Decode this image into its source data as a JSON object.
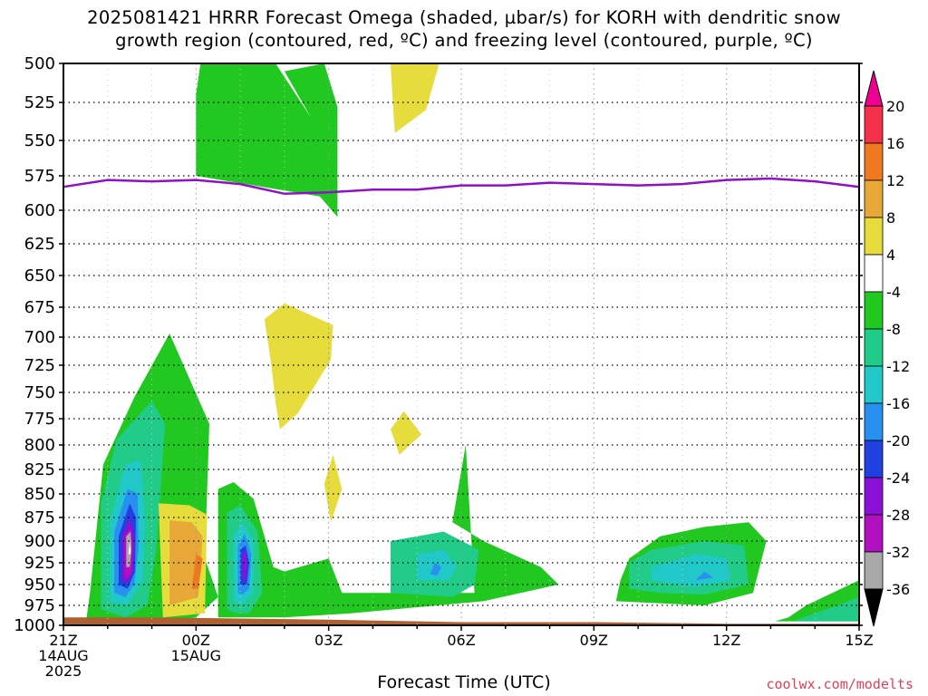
{
  "title": {
    "line1": "2025081421 HRRR Forecast Omega (shaded, µbar/s) for KORH with dendritic snow",
    "line2": "growth region (contoured, red, ºC) and freezing level (contoured, purple, ºC)"
  },
  "credit": "coolwx.com/modelts",
  "chart_data": {
    "type": "contour",
    "xlabel": "Forecast Time (UTC)",
    "ylabel": "",
    "x_range_hours": [
      0,
      18
    ],
    "y_range_mb": [
      1000,
      500
    ],
    "y_ticks": [
      500,
      525,
      550,
      575,
      600,
      625,
      650,
      675,
      700,
      725,
      750,
      775,
      800,
      825,
      850,
      875,
      900,
      925,
      950,
      975,
      1000
    ],
    "x_ticks": [
      {
        "hour": 0,
        "lines": [
          "21Z",
          "14AUG",
          "2025"
        ]
      },
      {
        "hour": 3,
        "lines": [
          "00Z",
          "15AUG"
        ]
      },
      {
        "hour": 6,
        "lines": [
          "03Z"
        ]
      },
      {
        "hour": 9,
        "lines": [
          "06Z"
        ]
      },
      {
        "hour": 12,
        "lines": [
          "09Z"
        ]
      },
      {
        "hour": 15,
        "lines": [
          "12Z"
        ]
      },
      {
        "hour": 18,
        "lines": [
          "15Z"
        ]
      }
    ],
    "grid": true,
    "colorbar": {
      "labels": [
        "20",
        "16",
        "12",
        "8",
        "4",
        "-4",
        "-8",
        "-12",
        "-16",
        "-20",
        "-24",
        "-28",
        "-32",
        "-36"
      ],
      "bands": [
        {
          "range": [
            16,
            20
          ],
          "color": "#f5304a"
        },
        {
          "range": [
            12,
            16
          ],
          "color": "#f07820"
        },
        {
          "range": [
            8,
            12
          ],
          "color": "#e8a838"
        },
        {
          "range": [
            4,
            8
          ],
          "color": "#e6dc3c"
        },
        {
          "range": [
            -4,
            4
          ],
          "color": "#ffffff"
        },
        {
          "range": [
            -8,
            -4
          ],
          "color": "#20c820"
        },
        {
          "range": [
            -12,
            -8
          ],
          "color": "#20cc88"
        },
        {
          "range": [
            -16,
            -12
          ],
          "color": "#20c8c8"
        },
        {
          "range": [
            -20,
            -16
          ],
          "color": "#2890f0"
        },
        {
          "range": [
            -24,
            -20
          ],
          "color": "#2040e0"
        },
        {
          "range": [
            -28,
            -24
          ],
          "color": "#8a10d8"
        },
        {
          "range": [
            -32,
            -28
          ],
          "color": "#b010c0"
        },
        {
          "range": [
            -36,
            -32
          ],
          "color": "#a8a8a8"
        }
      ],
      "top_arrow_color": "#f00090",
      "bottom_arrow_color": "#000000"
    },
    "freezing_level": {
      "color": "#9010c8",
      "points": [
        [
          0,
          583
        ],
        [
          1,
          578
        ],
        [
          2,
          579
        ],
        [
          3,
          578
        ],
        [
          4,
          581
        ],
        [
          5,
          588
        ],
        [
          6,
          587
        ],
        [
          7,
          585
        ],
        [
          8,
          585
        ],
        [
          9,
          582
        ],
        [
          10,
          582
        ],
        [
          11,
          580
        ],
        [
          12,
          581
        ],
        [
          13,
          582
        ],
        [
          14,
          581
        ],
        [
          15,
          578
        ],
        [
          16,
          577
        ],
        [
          17,
          579
        ],
        [
          18,
          583
        ]
      ]
    },
    "omega_regions": [
      {
        "value": -6,
        "color": "#20c820",
        "points": [
          [
            0.5,
            1000
          ],
          [
            0.6,
            960
          ],
          [
            0.9,
            820
          ],
          [
            1.6,
            755
          ],
          [
            2.4,
            697
          ],
          [
            3.3,
            780
          ],
          [
            3.2,
            920
          ],
          [
            3.5,
            965
          ],
          [
            3.0,
            990
          ],
          [
            1.8,
            1000
          ]
        ]
      },
      {
        "value": -10,
        "color": "#20cc88",
        "points": [
          [
            0.85,
            980
          ],
          [
            0.85,
            860
          ],
          [
            1.2,
            795
          ],
          [
            2.0,
            758
          ],
          [
            2.3,
            780
          ],
          [
            2.1,
            910
          ],
          [
            1.9,
            975
          ],
          [
            1.4,
            990
          ]
        ]
      },
      {
        "value": -14,
        "color": "#20c8c8",
        "points": [
          [
            1.05,
            970
          ],
          [
            1.05,
            880
          ],
          [
            1.4,
            820
          ],
          [
            1.75,
            815
          ],
          [
            1.85,
            880
          ],
          [
            1.8,
            945
          ],
          [
            1.45,
            975
          ]
        ]
      },
      {
        "value": -18,
        "color": "#2890f0",
        "points": [
          [
            1.15,
            960
          ],
          [
            1.15,
            890
          ],
          [
            1.45,
            845
          ],
          [
            1.68,
            850
          ],
          [
            1.7,
            910
          ],
          [
            1.6,
            950
          ],
          [
            1.4,
            965
          ]
        ]
      },
      {
        "value": -22,
        "color": "#2040e0",
        "points": [
          [
            1.25,
            950
          ],
          [
            1.25,
            895
          ],
          [
            1.5,
            860
          ],
          [
            1.64,
            875
          ],
          [
            1.62,
            935
          ],
          [
            1.45,
            955
          ]
        ]
      },
      {
        "value": -26,
        "color": "#8a10d8",
        "points": [
          [
            1.33,
            945
          ],
          [
            1.33,
            895
          ],
          [
            1.5,
            875
          ],
          [
            1.6,
            895
          ],
          [
            1.58,
            935
          ],
          [
            1.45,
            948
          ]
        ]
      },
      {
        "value": -30,
        "color": "#b010c0",
        "points": [
          [
            1.38,
            940
          ],
          [
            1.38,
            895
          ],
          [
            1.52,
            885
          ],
          [
            1.57,
            905
          ],
          [
            1.55,
            935
          ],
          [
            1.45,
            943
          ]
        ]
      },
      {
        "value": -34,
        "color": "#a8a8a8",
        "points": [
          [
            1.42,
            930
          ],
          [
            1.42,
            895
          ],
          [
            1.52,
            890
          ],
          [
            1.54,
            910
          ],
          [
            1.5,
            930
          ]
        ]
      },
      {
        "value": -36,
        "color": "#ffffff",
        "points": [
          [
            1.47,
            915
          ],
          [
            1.5,
            900
          ],
          [
            1.52,
            915
          ]
        ]
      },
      {
        "value": 6,
        "color": "#e6dc3c",
        "points": [
          [
            2.25,
            990
          ],
          [
            2.15,
            860
          ],
          [
            2.85,
            862
          ],
          [
            3.25,
            872
          ],
          [
            3.2,
            985
          ]
        ]
      },
      {
        "value": 10,
        "color": "#e8a838",
        "points": [
          [
            2.4,
            975
          ],
          [
            2.4,
            878
          ],
          [
            2.9,
            880
          ],
          [
            3.15,
            895
          ],
          [
            3.05,
            965
          ]
        ]
      },
      {
        "value": 14,
        "color": "#f07820",
        "points": [
          [
            2.9,
            955
          ],
          [
            3.0,
            915
          ],
          [
            3.15,
            920
          ],
          [
            3.05,
            955
          ]
        ]
      },
      {
        "value": -6,
        "color": "#20c820",
        "points": [
          [
            3.5,
            990
          ],
          [
            3.5,
            845
          ],
          [
            3.85,
            838
          ],
          [
            4.3,
            855
          ],
          [
            4.75,
            930
          ],
          [
            5.0,
            935
          ],
          [
            6.0,
            920
          ],
          [
            6.3,
            960
          ],
          [
            7.5,
            960
          ],
          [
            9.3,
            960
          ],
          [
            9.1,
            800
          ],
          [
            8.8,
            880
          ],
          [
            9.5,
            900
          ],
          [
            10.8,
            930
          ],
          [
            11.2,
            950
          ],
          [
            9.5,
            970
          ],
          [
            6.5,
            985
          ],
          [
            5.0,
            990
          ]
        ]
      },
      {
        "value": -10,
        "color": "#20cc88",
        "points": [
          [
            3.7,
            980
          ],
          [
            3.7,
            870
          ],
          [
            4.0,
            862
          ],
          [
            4.4,
            890
          ],
          [
            4.5,
            960
          ],
          [
            4.2,
            985
          ],
          [
            3.9,
            985
          ]
        ]
      },
      {
        "value": -14,
        "color": "#20c8c8",
        "points": [
          [
            3.85,
            970
          ],
          [
            3.85,
            895
          ],
          [
            4.05,
            880
          ],
          [
            4.3,
            900
          ],
          [
            4.3,
            960
          ],
          [
            4.05,
            975
          ]
        ]
      },
      {
        "value": -18,
        "color": "#2890f0",
        "points": [
          [
            3.95,
            960
          ],
          [
            3.95,
            905
          ],
          [
            4.1,
            892
          ],
          [
            4.25,
            915
          ],
          [
            4.2,
            955
          ],
          [
            4.05,
            962
          ]
        ]
      },
      {
        "value": -22,
        "color": "#2040e0",
        "points": [
          [
            4.0,
            950
          ],
          [
            4.0,
            910
          ],
          [
            4.12,
            905
          ],
          [
            4.2,
            925
          ],
          [
            4.15,
            950
          ]
        ]
      },
      {
        "value": -26,
        "color": "#8a10d8",
        "points": [
          [
            4.05,
            945
          ],
          [
            4.05,
            915
          ],
          [
            4.12,
            912
          ],
          [
            4.16,
            930
          ],
          [
            4.12,
            945
          ]
        ]
      },
      {
        "value": 6,
        "color": "#e6dc3c",
        "points": [
          [
            4.7,
            724
          ],
          [
            4.55,
            685
          ],
          [
            5.0,
            672
          ],
          [
            6.1,
            690
          ],
          [
            6.05,
            720
          ],
          [
            5.3,
            770
          ],
          [
            4.9,
            785
          ],
          [
            4.8,
            760
          ]
        ]
      },
      {
        "value": 6,
        "color": "#e6dc3c",
        "points": [
          [
            5.9,
            840
          ],
          [
            6.1,
            810
          ],
          [
            6.3,
            845
          ],
          [
            6.05,
            880
          ]
        ]
      },
      {
        "value": 6,
        "color": "#e6dc3c",
        "points": [
          [
            7.4,
            785
          ],
          [
            7.7,
            768
          ],
          [
            8.1,
            790
          ],
          [
            7.6,
            810
          ]
        ]
      },
      {
        "value": 6,
        "color": "#e6dc3c",
        "points": [
          [
            7.45,
            525
          ],
          [
            7.4,
            500
          ],
          [
            8.5,
            500
          ],
          [
            8.2,
            530
          ],
          [
            7.5,
            545
          ]
        ]
      },
      {
        "value": -6,
        "color": "#20c820",
        "points": [
          [
            3.0,
            520
          ],
          [
            3.1,
            500
          ],
          [
            4.8,
            500
          ],
          [
            5.6,
            535
          ],
          [
            5.0,
            505
          ],
          [
            5.9,
            500
          ],
          [
            6.2,
            528
          ],
          [
            6.2,
            605
          ],
          [
            5.8,
            590
          ],
          [
            3.0,
            575
          ]
        ]
      },
      {
        "value": -10,
        "color": "#20cc88",
        "points": [
          [
            7.4,
            960
          ],
          [
            7.4,
            900
          ],
          [
            8.6,
            890
          ],
          [
            9.4,
            910
          ],
          [
            9.3,
            950
          ],
          [
            8.8,
            965
          ]
        ]
      },
      {
        "value": -14,
        "color": "#20c8c8",
        "points": [
          [
            8.0,
            945
          ],
          [
            8.0,
            915
          ],
          [
            8.6,
            910
          ],
          [
            8.9,
            930
          ],
          [
            8.7,
            945
          ]
        ]
      },
      {
        "value": -18,
        "color": "#2890f0",
        "points": [
          [
            8.3,
            938
          ],
          [
            8.4,
            925
          ],
          [
            8.55,
            930
          ],
          [
            8.45,
            940
          ]
        ]
      },
      {
        "value": -6,
        "color": "#20c820",
        "points": [
          [
            12.5,
            970
          ],
          [
            12.6,
            945
          ],
          [
            12.8,
            920
          ],
          [
            13.5,
            895
          ],
          [
            14.5,
            885
          ],
          [
            15.5,
            880
          ],
          [
            15.9,
            900
          ],
          [
            15.6,
            960
          ],
          [
            14.5,
            975
          ]
        ]
      },
      {
        "value": -10,
        "color": "#20cc88",
        "points": [
          [
            12.8,
            955
          ],
          [
            12.8,
            925
          ],
          [
            13.3,
            910
          ],
          [
            14.5,
            900
          ],
          [
            15.4,
            905
          ],
          [
            15.5,
            950
          ],
          [
            14.5,
            962
          ],
          [
            13.5,
            960
          ]
        ]
      },
      {
        "value": -14,
        "color": "#20c8c8",
        "points": [
          [
            13.3,
            945
          ],
          [
            13.3,
            930
          ],
          [
            14.3,
            915
          ],
          [
            15.0,
            920
          ],
          [
            15.1,
            945
          ],
          [
            14.3,
            953
          ]
        ]
      },
      {
        "value": -18,
        "color": "#2890f0",
        "points": [
          [
            14.3,
            945
          ],
          [
            14.5,
            935
          ],
          [
            14.7,
            942
          ]
        ]
      },
      {
        "value": -6,
        "color": "#20c820",
        "points": [
          [
            16.1,
            995
          ],
          [
            16.4,
            990
          ],
          [
            16.8,
            975
          ],
          [
            18,
            945
          ],
          [
            18,
            995
          ]
        ]
      },
      {
        "value": -10,
        "color": "#20cc88",
        "points": [
          [
            16.5,
            995
          ],
          [
            17.5,
            975
          ],
          [
            18,
            965
          ],
          [
            18,
            995
          ]
        ]
      }
    ],
    "terrain": {
      "color": "#b06030",
      "points": [
        [
          0,
          990
        ],
        [
          2,
          990
        ],
        [
          6,
          993
        ],
        [
          9,
          996
        ],
        [
          12,
          996
        ],
        [
          15,
          998
        ],
        [
          18,
          998
        ],
        [
          18,
          1000
        ],
        [
          0,
          1000
        ]
      ]
    }
  }
}
